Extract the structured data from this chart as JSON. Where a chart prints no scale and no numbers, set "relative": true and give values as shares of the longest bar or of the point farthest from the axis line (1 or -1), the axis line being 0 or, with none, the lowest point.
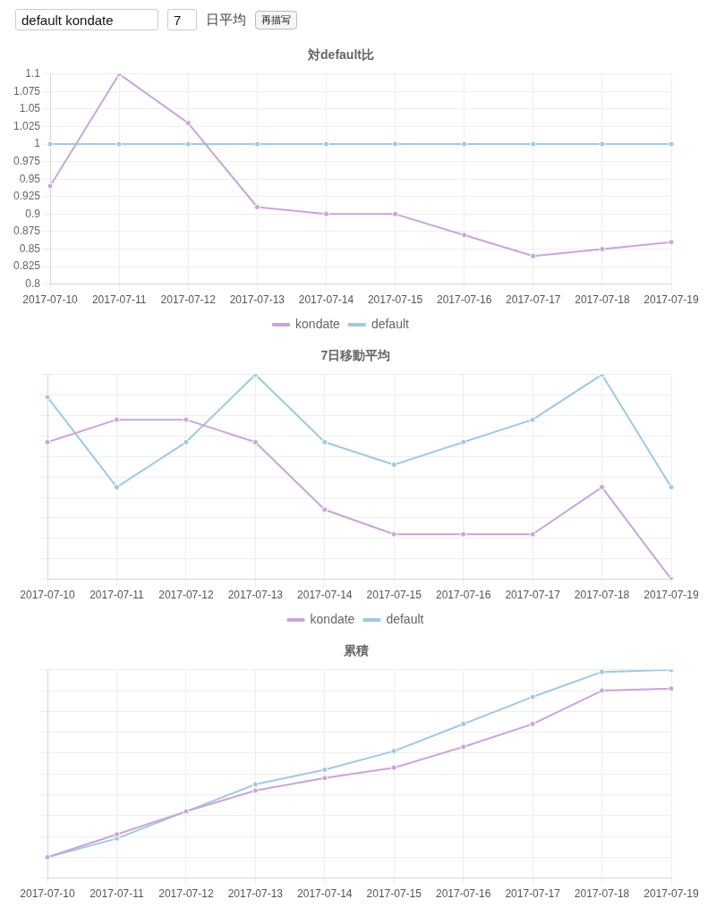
{
  "chart_data": [
    {
      "type": "other",
      "annotations": [
        "default kondate",
        "7",
        "日平均",
        "再描写"
      ]
    },
    {
      "type": "line",
      "title": "対default比",
      "categories": [
        "2017-07-10",
        "2017-07-11",
        "2017-07-12",
        "2017-07-13",
        "2017-07-14",
        "2017-07-15",
        "2017-07-16",
        "2017-07-17",
        "2017-07-18",
        "2017-07-19"
      ],
      "series": [
        {
          "name": "kondate",
          "color": "#c9a6d8",
          "values": [
            0.94,
            1.1,
            1.03,
            0.91,
            0.9,
            0.9,
            0.87,
            0.84,
            0.85,
            0.86
          ]
        },
        {
          "name": "default",
          "color": "#9ecae1",
          "values": [
            1,
            1,
            1,
            1,
            1,
            1,
            1,
            1,
            1,
            1
          ]
        }
      ],
      "ylim": [
        0.8,
        1.1
      ],
      "yticks": [
        0.8,
        0.825,
        0.85,
        0.875,
        0.9,
        0.925,
        0.95,
        0.975,
        1,
        1.025,
        1.05,
        1.075,
        1.1
      ],
      "grid": true,
      "legend": "bottom",
      "marker": "circle",
      "line_style": "solid"
    },
    {
      "type": "line",
      "title": "7日移動平均",
      "relative": true,
      "categories": [
        "2017-07-10",
        "2017-07-11",
        "2017-07-12",
        "2017-07-13",
        "2017-07-14",
        "2017-07-15",
        "2017-07-16",
        "2017-07-17",
        "2017-07-18",
        "2017-07-19"
      ],
      "series": [
        {
          "name": "kondate",
          "color": "#c9a6d8",
          "values": [
            0.67,
            0.78,
            0.78,
            0.67,
            0.34,
            0.22,
            0.22,
            0.22,
            0.45,
            0
          ]
        },
        {
          "name": "default",
          "color": "#9ecae1",
          "values": [
            0.89,
            0.45,
            0.67,
            1,
            0.67,
            0.56,
            0.67,
            0.78,
            1,
            0.45
          ]
        }
      ],
      "grid": true,
      "legend": "bottom",
      "marker": "circle",
      "line_style": "solid"
    },
    {
      "type": "line",
      "title": "累積",
      "relative": true,
      "categories": [
        "2017-07-10",
        "2017-07-11",
        "2017-07-12",
        "2017-07-13",
        "2017-07-14",
        "2017-07-15",
        "2017-07-16",
        "2017-07-17",
        "2017-07-18",
        "2017-07-19"
      ],
      "series": [
        {
          "color": "#c9a6d8",
          "values": [
            0.1,
            0.21,
            0.32,
            0.42,
            0.48,
            0.53,
            0.63,
            0.74,
            0.9,
            0.91
          ]
        },
        {
          "color": "#9ecae1",
          "values": [
            0.1,
            0.19,
            0.32,
            0.45,
            0.52,
            0.61,
            0.74,
            0.87,
            0.99,
            1
          ]
        }
      ],
      "grid": true,
      "marker": "circle",
      "line_style": "solid"
    }
  ]
}
